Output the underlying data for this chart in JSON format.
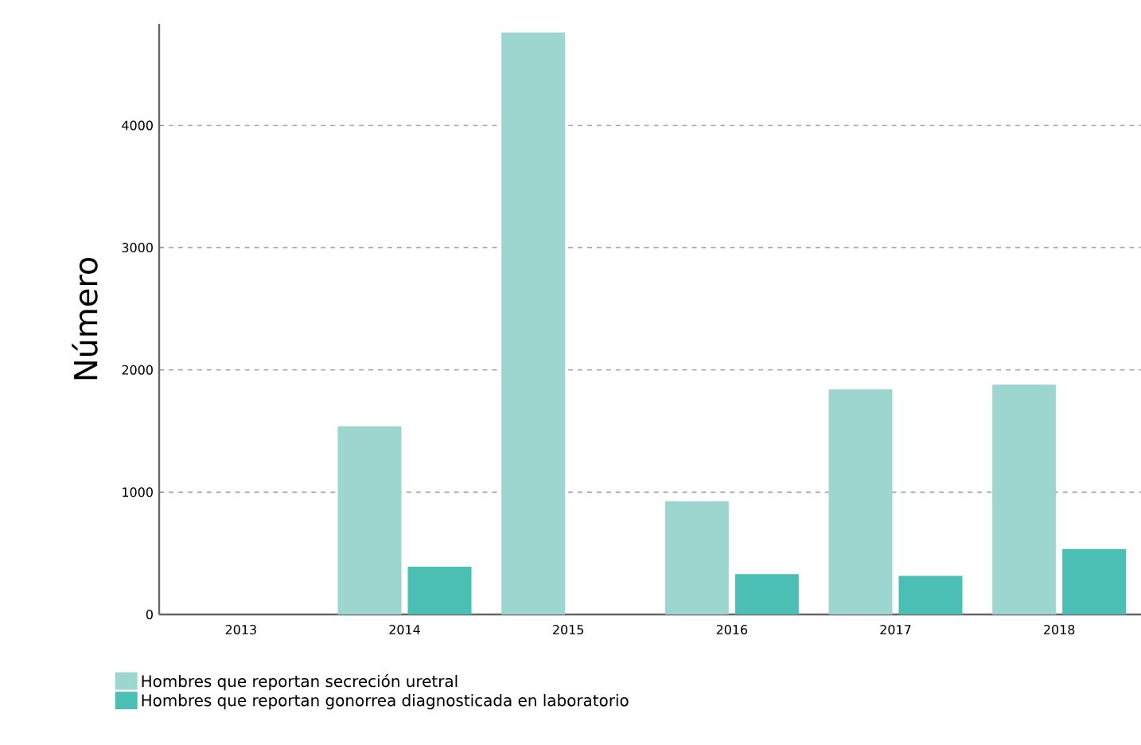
{
  "chart_data": {
    "type": "bar",
    "ylabel": "Número",
    "categories": [
      "2013",
      "2014",
      "2015",
      "2016",
      "2017",
      "2018"
    ],
    "series": [
      {
        "name": "Hombres que reportan secreción uretral",
        "color": "#9dd6cf",
        "values": [
          null,
          1540,
          4760,
          925,
          1840,
          1880
        ]
      },
      {
        "name": "Hombres que reportan gonorrea diagnosticada en laboratorio",
        "color": "#4bbfb3",
        "values": [
          null,
          390,
          null,
          330,
          315,
          535
        ]
      }
    ],
    "ylim": [
      0,
      4830
    ],
    "yticks": [
      0,
      1000,
      2000,
      3000,
      4000
    ],
    "grid": "y",
    "legend": "bottom"
  }
}
